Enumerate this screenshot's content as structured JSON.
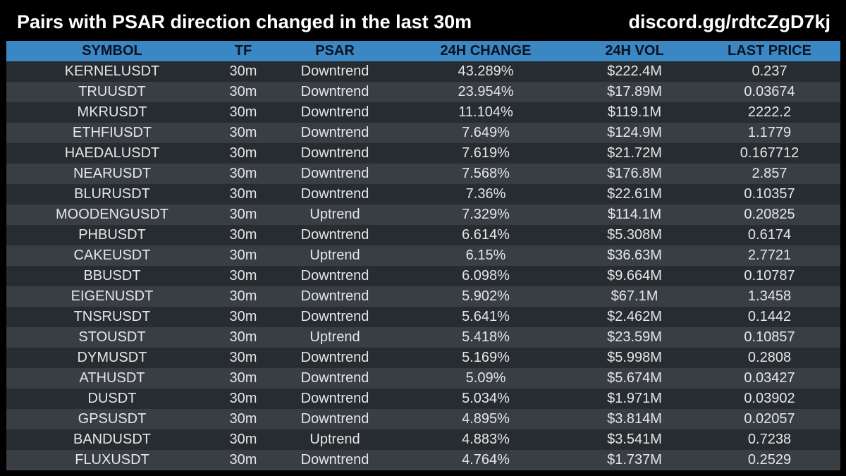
{
  "header": {
    "title": "Pairs with PSAR direction changed in the last 30m",
    "link": "discord.gg/rdtcZgD7kj"
  },
  "table": {
    "columns": [
      "SYMBOL",
      "TF",
      "PSAR",
      "24H CHANGE",
      "24H VOL",
      "LAST PRICE"
    ],
    "rows": [
      [
        "KERNELUSDT",
        "30m",
        "Downtrend",
        "43.289%",
        "$222.4M",
        "0.237"
      ],
      [
        "TRUUSDT",
        "30m",
        "Downtrend",
        "23.954%",
        "$17.89M",
        "0.03674"
      ],
      [
        "MKRUSDT",
        "30m",
        "Downtrend",
        "11.104%",
        "$119.1M",
        "2222.2"
      ],
      [
        "ETHFIUSDT",
        "30m",
        "Downtrend",
        "7.649%",
        "$124.9M",
        "1.1779"
      ],
      [
        "HAEDALUSDT",
        "30m",
        "Downtrend",
        "7.619%",
        "$21.72M",
        "0.167712"
      ],
      [
        "NEARUSDT",
        "30m",
        "Downtrend",
        "7.568%",
        "$176.8M",
        "2.857"
      ],
      [
        "BLURUSDT",
        "30m",
        "Downtrend",
        "7.36%",
        "$22.61M",
        "0.10357"
      ],
      [
        "MOODENGUSDT",
        "30m",
        "Uptrend",
        "7.329%",
        "$114.1M",
        "0.20825"
      ],
      [
        "PHBUSDT",
        "30m",
        "Downtrend",
        "6.614%",
        "$5.308M",
        "0.6174"
      ],
      [
        "CAKEUSDT",
        "30m",
        "Uptrend",
        "6.15%",
        "$36.63M",
        "2.7721"
      ],
      [
        "BBUSDT",
        "30m",
        "Downtrend",
        "6.098%",
        "$9.664M",
        "0.10787"
      ],
      [
        "EIGENUSDT",
        "30m",
        "Downtrend",
        "5.902%",
        "$67.1M",
        "1.3458"
      ],
      [
        "TNSRUSDT",
        "30m",
        "Downtrend",
        "5.641%",
        "$2.462M",
        "0.1442"
      ],
      [
        "STOUSDT",
        "30m",
        "Uptrend",
        "5.418%",
        "$23.59M",
        "0.10857"
      ],
      [
        "DYMUSDT",
        "30m",
        "Downtrend",
        "5.169%",
        "$5.998M",
        "0.2808"
      ],
      [
        "ATHUSDT",
        "30m",
        "Downtrend",
        "5.09%",
        "$5.674M",
        "0.03427"
      ],
      [
        "DUSDT",
        "30m",
        "Downtrend",
        "5.034%",
        "$1.971M",
        "0.03902"
      ],
      [
        "GPSUSDT",
        "30m",
        "Downtrend",
        "4.895%",
        "$3.814M",
        "0.02057"
      ],
      [
        "BANDUSDT",
        "30m",
        "Uptrend",
        "4.883%",
        "$3.541M",
        "0.7238"
      ],
      [
        "FLUXUSDT",
        "30m",
        "Downtrend",
        "4.764%",
        "$1.737M",
        "0.2529"
      ]
    ]
  },
  "colors": {
    "background": "#000000",
    "header_row": "#3b87c4",
    "row_odd": "#272c31",
    "row_even": "#383e44",
    "text": "#e6e6e6"
  }
}
